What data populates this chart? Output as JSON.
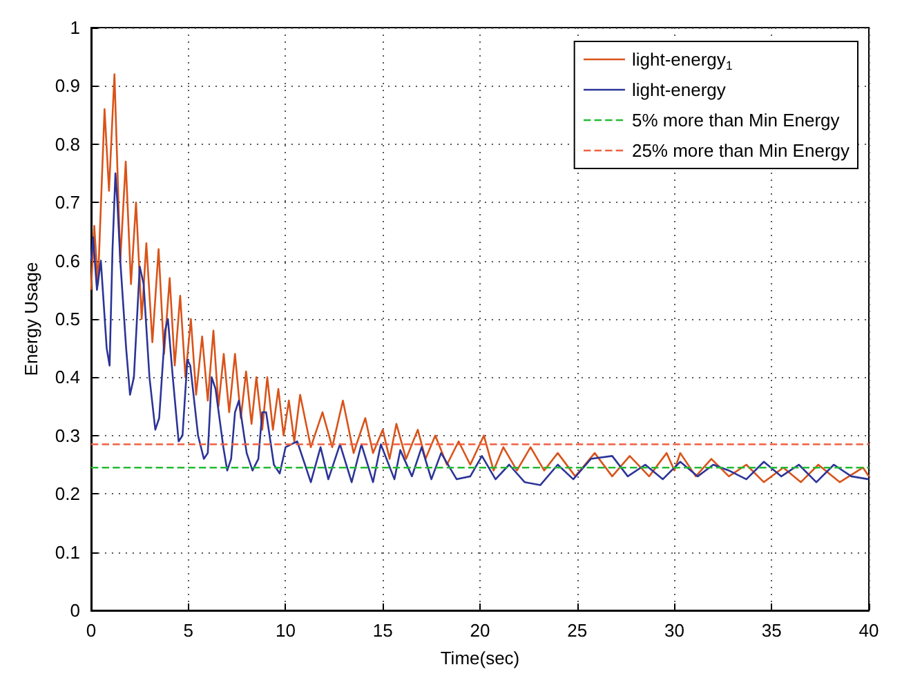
{
  "chart_data": {
    "type": "line",
    "xlabel": "Time(sec)",
    "ylabel": "Energy Usage",
    "xlim": [
      0,
      40
    ],
    "ylim": [
      0,
      1
    ],
    "xticks": [
      0,
      5,
      10,
      15,
      20,
      25,
      30,
      35,
      40
    ],
    "yticks": [
      0,
      0.1,
      0.2,
      0.3,
      0.4,
      0.5,
      0.6,
      0.7,
      0.8,
      0.9,
      1
    ],
    "grid": true,
    "legend": "top right",
    "line_style": "solid",
    "marker": "none",
    "series": [
      {
        "name": "light-energy$_{1}$",
        "color": "#d95319",
        "x": [
          0,
          0.16,
          0.35,
          0.69,
          0.92,
          1.2,
          1.5,
          1.78,
          2.05,
          2.31,
          2.6,
          2.84,
          3.15,
          3.47,
          3.75,
          4.04,
          4.3,
          4.58,
          4.85,
          5.13,
          5.4,
          5.71,
          6.0,
          6.29,
          6.55,
          6.82,
          7.1,
          7.4,
          7.7,
          7.97,
          8.25,
          8.5,
          8.8,
          9.06,
          9.35,
          9.63,
          9.9,
          10.17,
          10.45,
          10.75,
          11.3,
          11.9,
          12.4,
          12.95,
          13.5,
          14.1,
          14.5,
          15.0,
          15.35,
          15.7,
          16.2,
          16.8,
          17.2,
          17.7,
          18.3,
          18.9,
          19.5,
          20.2,
          20.7,
          21.2,
          21.9,
          22.6,
          23.3,
          24.0,
          24.9,
          25.9,
          26.8,
          27.7,
          28.7,
          29.6,
          30.0,
          30.3,
          31.1,
          31.9,
          32.8,
          33.7,
          34.6,
          35.6,
          36.5,
          37.4,
          38.5,
          39.7,
          40
        ],
        "values": [
          0.55,
          0.66,
          0.56,
          0.86,
          0.72,
          0.92,
          0.6,
          0.77,
          0.56,
          0.7,
          0.5,
          0.63,
          0.46,
          0.62,
          0.44,
          0.57,
          0.42,
          0.54,
          0.4,
          0.5,
          0.37,
          0.47,
          0.36,
          0.48,
          0.35,
          0.44,
          0.34,
          0.44,
          0.33,
          0.41,
          0.32,
          0.4,
          0.31,
          0.4,
          0.31,
          0.38,
          0.3,
          0.36,
          0.29,
          0.37,
          0.28,
          0.34,
          0.28,
          0.36,
          0.27,
          0.33,
          0.27,
          0.31,
          0.26,
          0.32,
          0.26,
          0.31,
          0.26,
          0.3,
          0.25,
          0.29,
          0.25,
          0.3,
          0.24,
          0.28,
          0.24,
          0.28,
          0.24,
          0.27,
          0.23,
          0.27,
          0.23,
          0.265,
          0.23,
          0.27,
          0.24,
          0.27,
          0.23,
          0.26,
          0.23,
          0.25,
          0.22,
          0.245,
          0.22,
          0.25,
          0.22,
          0.245,
          0.23
        ]
      },
      {
        "name": "light-energy",
        "color": "#2b3497",
        "x": [
          0,
          0.1,
          0.3,
          0.5,
          0.8,
          0.95,
          1.1,
          1.25,
          1.35,
          1.5,
          1.8,
          2.0,
          2.2,
          2.5,
          2.7,
          3.0,
          3.3,
          3.5,
          3.8,
          3.95,
          4.2,
          4.5,
          4.7,
          4.95,
          5.1,
          5.5,
          5.8,
          6.0,
          6.2,
          6.4,
          6.8,
          7.0,
          7.2,
          7.4,
          7.6,
          8.0,
          8.3,
          8.6,
          8.8,
          9.0,
          9.4,
          9.7,
          10.0,
          10.6,
          11.3,
          11.8,
          12.2,
          12.8,
          13.4,
          13.9,
          14.5,
          14.9,
          15.6,
          15.9,
          16.5,
          17.0,
          17.5,
          18.0,
          18.8,
          19.5,
          20.1,
          20.8,
          21.5,
          22.3,
          23.1,
          24.0,
          24.8,
          25.7,
          26.8,
          27.6,
          28.5,
          29.4,
          30.3,
          31.2,
          32.0,
          32.8,
          33.7,
          34.6,
          35.5,
          36.4,
          37.3,
          38.2,
          39.1,
          40
        ],
        "values": [
          0.6,
          0.64,
          0.55,
          0.6,
          0.45,
          0.42,
          0.62,
          0.75,
          0.7,
          0.6,
          0.45,
          0.37,
          0.4,
          0.59,
          0.56,
          0.4,
          0.31,
          0.33,
          0.48,
          0.5,
          0.4,
          0.29,
          0.3,
          0.43,
          0.42,
          0.3,
          0.26,
          0.27,
          0.4,
          0.38,
          0.28,
          0.24,
          0.26,
          0.34,
          0.36,
          0.27,
          0.24,
          0.26,
          0.34,
          0.34,
          0.25,
          0.235,
          0.28,
          0.29,
          0.22,
          0.28,
          0.225,
          0.285,
          0.22,
          0.285,
          0.22,
          0.285,
          0.225,
          0.275,
          0.23,
          0.28,
          0.225,
          0.27,
          0.225,
          0.23,
          0.265,
          0.225,
          0.25,
          0.22,
          0.215,
          0.25,
          0.225,
          0.26,
          0.265,
          0.23,
          0.25,
          0.225,
          0.255,
          0.23,
          0.25,
          0.24,
          0.225,
          0.255,
          0.23,
          0.25,
          0.22,
          0.25,
          0.23,
          0.225
        ]
      }
    ],
    "ref_lines": [
      {
        "axis": "y",
        "value": 0.245,
        "label": "5% more than Min Energy",
        "color": "#22bb33",
        "line_style": "dashed"
      },
      {
        "axis": "y",
        "value": 0.285,
        "label": "25% more than Min Energy",
        "color": "#f06040",
        "line_style": "dashed"
      }
    ]
  }
}
